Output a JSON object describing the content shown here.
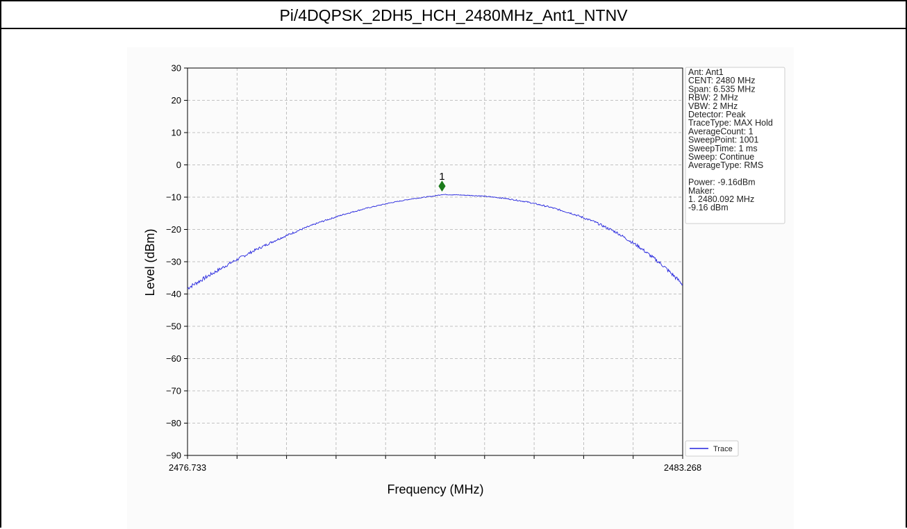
{
  "title": "Pi/4DQPSK_2DH5_HCH_2480MHz_Ant1_NTNV",
  "chart_data": {
    "type": "line",
    "xlabel": "Frequency (MHz)",
    "ylabel": "Level (dBm)",
    "xlim": [
      2476.733,
      2483.268
    ],
    "ylim": [
      -90,
      30
    ],
    "x_tick_labels": [
      "2476.733",
      "2483.268"
    ],
    "y_ticks": [
      30,
      20,
      10,
      0,
      -10,
      -20,
      -30,
      -40,
      -50,
      -60,
      -70,
      -80,
      -90
    ],
    "y_tick_labels": [
      "30",
      "20",
      "10",
      "0",
      "−10",
      "−20",
      "−30",
      "−40",
      "−50",
      "−60",
      "−70",
      "−80",
      "−90"
    ],
    "grid": true,
    "series": [
      {
        "name": "Trace",
        "color": "#2222dd",
        "x": [
          2476.733,
          2477.0,
          2477.3,
          2477.6,
          2477.9,
          2478.2,
          2478.5,
          2478.8,
          2479.1,
          2479.4,
          2479.7,
          2480.0,
          2480.092,
          2480.3,
          2480.6,
          2480.9,
          2481.2,
          2481.5,
          2481.8,
          2482.1,
          2482.4,
          2482.7,
          2483.0,
          2483.268
        ],
        "y": [
          -38.2,
          -34.5,
          -30.4,
          -26.7,
          -23.3,
          -20.3,
          -17.6,
          -15.3,
          -13.4,
          -11.8,
          -10.5,
          -9.6,
          -9.16,
          -9.3,
          -9.6,
          -10.3,
          -11.4,
          -13.0,
          -15.0,
          -17.6,
          -21.0,
          -25.5,
          -31.0,
          -37.0
        ]
      }
    ],
    "marker": {
      "label": "1",
      "x": 2480.092,
      "y": -9.16,
      "color": "#1a7a1a"
    },
    "legend": {
      "position": "bottom-right",
      "label": "Trace"
    }
  },
  "info_box": {
    "lines": [
      "Ant: Ant1",
      "CENT: 2480 MHz",
      "Span: 6.535 MHz",
      "RBW: 2 MHz",
      "VBW: 2 MHz",
      "Detector: Peak",
      "TraceType: MAX Hold",
      "AverageCount: 1",
      "SweepPoint: 1001",
      "SweepTime: 1 ms",
      "Sweep: Continue",
      "AverageType: RMS",
      "",
      "Power: -9.16dBm",
      "Maker:",
      "1. 2480.092 MHz",
      "    -9.16 dBm"
    ]
  }
}
